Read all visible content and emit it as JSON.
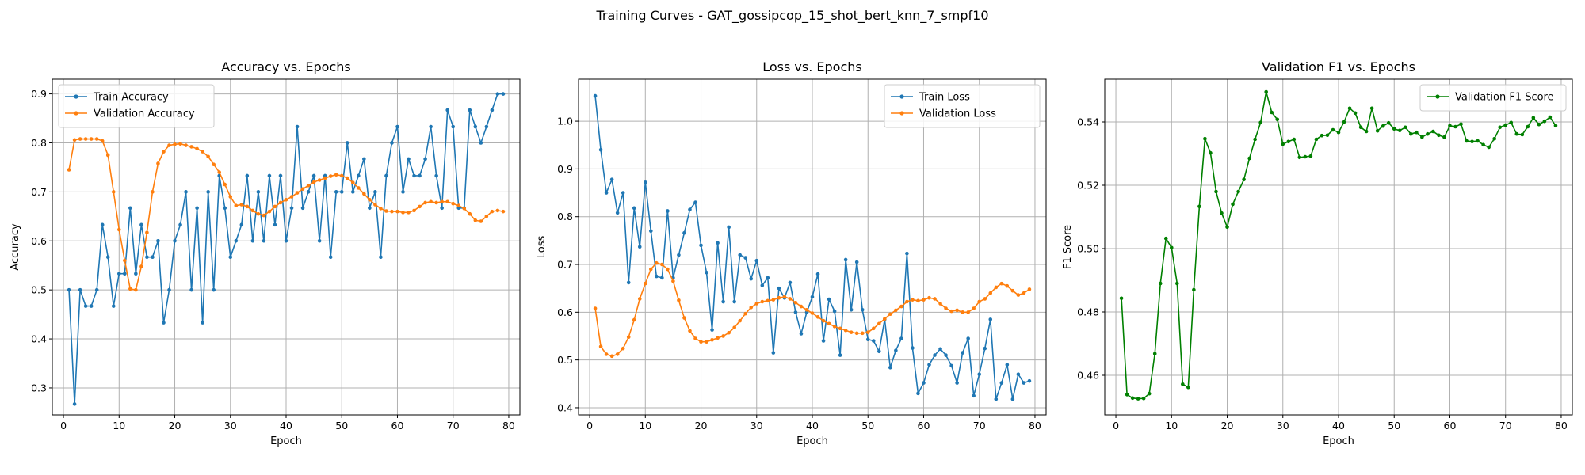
{
  "suptitle": "Training Curves - GAT_gossipcop_15_shot_bert_knn_7_smpf10",
  "chart_data": [
    {
      "type": "line",
      "title": "Accuracy vs. Epochs",
      "xlabel": "Epoch",
      "ylabel": "Accuracy",
      "xlim": [
        -2,
        82
      ],
      "ylim": [
        0.245,
        0.93
      ],
      "xticks": [
        0,
        10,
        20,
        30,
        40,
        50,
        60,
        70,
        80
      ],
      "yticks": [
        0.3,
        0.4,
        0.5,
        0.6,
        0.7,
        0.8,
        0.9
      ],
      "ytick_labels": [
        "0.3",
        "0.4",
        "0.5",
        "0.6",
        "0.7",
        "0.8",
        "0.9"
      ],
      "grid": true,
      "legend": "upper left",
      "x": [
        1,
        2,
        3,
        4,
        5,
        6,
        7,
        8,
        9,
        10,
        11,
        12,
        13,
        14,
        15,
        16,
        17,
        18,
        19,
        20,
        21,
        22,
        23,
        24,
        25,
        26,
        27,
        28,
        29,
        30,
        31,
        32,
        33,
        34,
        35,
        36,
        37,
        38,
        39,
        40,
        41,
        42,
        43,
        44,
        45,
        46,
        47,
        48,
        49,
        50,
        51,
        52,
        53,
        54,
        55,
        56,
        57,
        58,
        59,
        60,
        61,
        62,
        63,
        64,
        65,
        66,
        67,
        68,
        69,
        70,
        71,
        72,
        73,
        74,
        75,
        76,
        77,
        78,
        79
      ],
      "series": [
        {
          "name": "Train Accuracy",
          "color": "#1f77b4",
          "values": [
            0.5,
            0.267,
            0.5,
            0.467,
            0.467,
            0.5,
            0.633,
            0.567,
            0.467,
            0.533,
            0.533,
            0.667,
            0.533,
            0.633,
            0.567,
            0.567,
            0.6,
            0.433,
            0.5,
            0.6,
            0.633,
            0.7,
            0.5,
            0.667,
            0.433,
            0.7,
            0.5,
            0.733,
            0.667,
            0.567,
            0.6,
            0.633,
            0.733,
            0.6,
            0.7,
            0.6,
            0.733,
            0.633,
            0.733,
            0.6,
            0.667,
            0.833,
            0.667,
            0.7,
            0.733,
            0.6,
            0.733,
            0.567,
            0.7,
            0.7,
            0.8,
            0.7,
            0.733,
            0.767,
            0.667,
            0.7,
            0.567,
            0.733,
            0.8,
            0.833,
            0.7,
            0.767,
            0.733,
            0.733,
            0.767,
            0.833,
            0.733,
            0.667,
            0.867,
            0.833,
            0.667,
            0.667,
            0.867,
            0.833,
            0.8,
            0.833,
            0.867,
            0.9,
            0.9
          ]
        },
        {
          "name": "Validation Accuracy",
          "color": "#ff7f0e",
          "values": [
            0.745,
            0.806,
            0.808,
            0.808,
            0.808,
            0.808,
            0.804,
            0.775,
            0.7,
            0.623,
            0.56,
            0.502,
            0.5,
            0.548,
            0.617,
            0.7,
            0.758,
            0.782,
            0.795,
            0.797,
            0.798,
            0.795,
            0.792,
            0.788,
            0.782,
            0.772,
            0.756,
            0.74,
            0.715,
            0.69,
            0.672,
            0.674,
            0.67,
            0.662,
            0.655,
            0.652,
            0.66,
            0.67,
            0.678,
            0.684,
            0.69,
            0.698,
            0.706,
            0.713,
            0.72,
            0.724,
            0.728,
            0.732,
            0.735,
            0.733,
            0.728,
            0.719,
            0.708,
            0.696,
            0.684,
            0.674,
            0.666,
            0.661,
            0.66,
            0.66,
            0.658,
            0.658,
            0.662,
            0.67,
            0.678,
            0.68,
            0.678,
            0.68,
            0.68,
            0.676,
            0.672,
            0.666,
            0.655,
            0.642,
            0.64,
            0.65,
            0.66,
            0.662,
            0.66
          ]
        }
      ]
    },
    {
      "type": "line",
      "title": "Loss vs. Epochs",
      "xlabel": "Epoch",
      "ylabel": "Loss",
      "xlim": [
        -2,
        82
      ],
      "ylim": [
        0.385,
        1.088
      ],
      "xticks": [
        0,
        10,
        20,
        30,
        40,
        50,
        60,
        70,
        80
      ],
      "yticks": [
        0.4,
        0.5,
        0.6,
        0.7,
        0.8,
        0.9,
        1.0
      ],
      "ytick_labels": [
        "0.4",
        "0.5",
        "0.6",
        "0.7",
        "0.8",
        "0.9",
        "1.0"
      ],
      "grid": true,
      "legend": "upper right",
      "x": [
        1,
        2,
        3,
        4,
        5,
        6,
        7,
        8,
        9,
        10,
        11,
        12,
        13,
        14,
        15,
        16,
        17,
        18,
        19,
        20,
        21,
        22,
        23,
        24,
        25,
        26,
        27,
        28,
        29,
        30,
        31,
        32,
        33,
        34,
        35,
        36,
        37,
        38,
        39,
        40,
        41,
        42,
        43,
        44,
        45,
        46,
        47,
        48,
        49,
        50,
        51,
        52,
        53,
        54,
        55,
        56,
        57,
        58,
        59,
        60,
        61,
        62,
        63,
        64,
        65,
        66,
        67,
        68,
        69,
        70,
        71,
        72,
        73,
        74,
        75,
        76,
        77,
        78,
        79
      ],
      "series": [
        {
          "name": "Train Loss",
          "color": "#1f77b4",
          "values": [
            1.053,
            0.94,
            0.85,
            0.878,
            0.808,
            0.85,
            0.662,
            0.818,
            0.737,
            0.872,
            0.77,
            0.675,
            0.672,
            0.812,
            0.672,
            0.72,
            0.766,
            0.815,
            0.83,
            0.74,
            0.683,
            0.563,
            0.745,
            0.622,
            0.778,
            0.622,
            0.72,
            0.714,
            0.67,
            0.708,
            0.656,
            0.672,
            0.515,
            0.65,
            0.63,
            0.662,
            0.6,
            0.555,
            0.6,
            0.632,
            0.68,
            0.54,
            0.627,
            0.602,
            0.51,
            0.71,
            0.605,
            0.705,
            0.605,
            0.543,
            0.54,
            0.518,
            0.585,
            0.484,
            0.52,
            0.545,
            0.723,
            0.525,
            0.43,
            0.452,
            0.49,
            0.51,
            0.523,
            0.51,
            0.488,
            0.452,
            0.515,
            0.545,
            0.425,
            0.47,
            0.524,
            0.585,
            0.418,
            0.452,
            0.49,
            0.418,
            0.47,
            0.452,
            0.456
          ]
        },
        {
          "name": "Validation Loss",
          "color": "#ff7f0e",
          "values": [
            0.608,
            0.528,
            0.512,
            0.508,
            0.512,
            0.524,
            0.548,
            0.584,
            0.628,
            0.66,
            0.69,
            0.703,
            0.7,
            0.69,
            0.665,
            0.625,
            0.588,
            0.561,
            0.545,
            0.538,
            0.538,
            0.542,
            0.546,
            0.55,
            0.557,
            0.568,
            0.582,
            0.597,
            0.61,
            0.618,
            0.622,
            0.624,
            0.626,
            0.63,
            0.632,
            0.628,
            0.62,
            0.612,
            0.605,
            0.598,
            0.59,
            0.582,
            0.576,
            0.57,
            0.566,
            0.562,
            0.558,
            0.556,
            0.556,
            0.558,
            0.566,
            0.576,
            0.586,
            0.596,
            0.604,
            0.612,
            0.622,
            0.626,
            0.624,
            0.626,
            0.63,
            0.628,
            0.618,
            0.608,
            0.602,
            0.604,
            0.6,
            0.6,
            0.608,
            0.622,
            0.628,
            0.64,
            0.652,
            0.66,
            0.655,
            0.645,
            0.636,
            0.64,
            0.648
          ]
        }
      ]
    },
    {
      "type": "line",
      "title": "Validation F1 vs. Epochs",
      "xlabel": "Epoch",
      "ylabel": "F1 Score",
      "xlim": [
        -2,
        82
      ],
      "ylim": [
        0.4475,
        0.5535
      ],
      "xticks": [
        0,
        10,
        20,
        30,
        40,
        50,
        60,
        70,
        80
      ],
      "yticks": [
        0.46,
        0.48,
        0.5,
        0.52,
        0.54
      ],
      "ytick_labels": [
        "0.46",
        "0.48",
        "0.50",
        "0.52",
        "0.54"
      ],
      "grid": true,
      "legend": "upper right",
      "x": [
        1,
        2,
        3,
        4,
        5,
        6,
        7,
        8,
        9,
        10,
        11,
        12,
        13,
        14,
        15,
        16,
        17,
        18,
        19,
        20,
        21,
        22,
        23,
        24,
        25,
        26,
        27,
        28,
        29,
        30,
        31,
        32,
        33,
        34,
        35,
        36,
        37,
        38,
        39,
        40,
        41,
        42,
        43,
        44,
        45,
        46,
        47,
        48,
        49,
        50,
        51,
        52,
        53,
        54,
        55,
        56,
        57,
        58,
        59,
        60,
        61,
        62,
        63,
        64,
        65,
        66,
        67,
        68,
        69,
        70,
        71,
        72,
        73,
        74,
        75,
        76,
        77,
        78,
        79
      ],
      "series": [
        {
          "name": "Validation F1 Score",
          "color": "#008000",
          "values": [
            0.4843,
            0.4539,
            0.4528,
            0.4526,
            0.4527,
            0.4542,
            0.4668,
            0.489,
            0.5032,
            0.5003,
            0.489,
            0.4572,
            0.4562,
            0.487,
            0.5133,
            0.5347,
            0.5302,
            0.518,
            0.5112,
            0.5068,
            0.514,
            0.518,
            0.5218,
            0.5285,
            0.5345,
            0.5398,
            0.5495,
            0.543,
            0.5408,
            0.533,
            0.5338,
            0.5345,
            0.5288,
            0.529,
            0.5292,
            0.5345,
            0.5357,
            0.5358,
            0.5375,
            0.5367,
            0.54,
            0.5443,
            0.5428,
            0.5383,
            0.537,
            0.5443,
            0.5372,
            0.5387,
            0.5397,
            0.5378,
            0.5373,
            0.5383,
            0.5362,
            0.5367,
            0.5352,
            0.5362,
            0.537,
            0.5358,
            0.5352,
            0.5388,
            0.5385,
            0.5393,
            0.534,
            0.5338,
            0.534,
            0.5328,
            0.532,
            0.5347,
            0.5383,
            0.539,
            0.5398,
            0.5362,
            0.536,
            0.5385,
            0.5413,
            0.5392,
            0.5402,
            0.5415,
            0.5388
          ]
        }
      ]
    }
  ]
}
